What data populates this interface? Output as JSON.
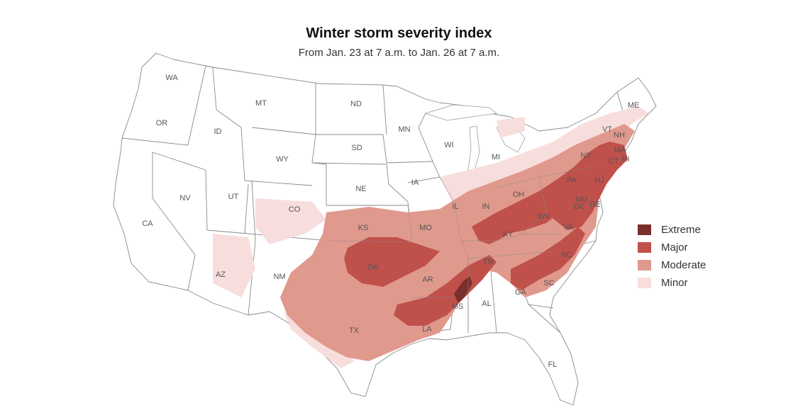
{
  "header": {
    "title": "Winter storm severity index",
    "subtitle": "From Jan. 23 at 7 a.m. to Jan. 26 at 7 a.m."
  },
  "legend": {
    "items": [
      {
        "label": "Extreme",
        "color": "#7a2f2d"
      },
      {
        "label": "Major",
        "color": "#c0504a"
      },
      {
        "label": "Moderate",
        "color": "#e0998d"
      },
      {
        "label": "Minor",
        "color": "#f7dedd"
      }
    ]
  },
  "map": {
    "state_labels": [
      "WA",
      "OR",
      "CA",
      "ID",
      "NV",
      "MT",
      "WY",
      "UT",
      "AZ",
      "CO",
      "NM",
      "ND",
      "SD",
      "NE",
      "KS",
      "OK",
      "TX",
      "MN",
      "IA",
      "MO",
      "AR",
      "LA",
      "WI",
      "IL",
      "MI",
      "IN",
      "OH",
      "KY",
      "TN",
      "MS",
      "AL",
      "GA",
      "FL",
      "SC",
      "NC",
      "VA",
      "WV",
      "PA",
      "NY",
      "ME",
      "VT",
      "NH",
      "MA",
      "CT",
      "RI",
      "NJ",
      "MD",
      "DE",
      "DC"
    ]
  }
}
